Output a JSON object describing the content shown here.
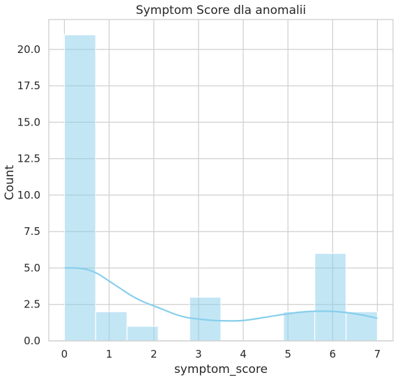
{
  "chart_data": {
    "type": "bar",
    "subtype": "histogram",
    "title": "Symptom Score dla anomalii",
    "xlabel": "symptom_score",
    "ylabel": "Count",
    "xlim": [
      -0.35,
      7.35
    ],
    "ylim": [
      0,
      22.05
    ],
    "xticks": [
      0,
      1,
      2,
      3,
      4,
      5,
      6,
      7
    ],
    "xtick_labels": [
      "0",
      "1",
      "2",
      "3",
      "4",
      "5",
      "6",
      "7"
    ],
    "yticks": [
      0,
      2.5,
      5,
      7.5,
      10,
      12.5,
      15,
      17.5,
      20
    ],
    "ytick_labels": [
      "0.0",
      "2.5",
      "5.0",
      "7.5",
      "10.0",
      "12.5",
      "15.0",
      "17.5",
      "20.0"
    ],
    "grid": true,
    "color": "#87ceeb",
    "bins": [
      {
        "x0": 0.0,
        "x1": 0.7,
        "count": 21
      },
      {
        "x0": 0.7,
        "x1": 1.4,
        "count": 2
      },
      {
        "x0": 1.4,
        "x1": 2.1,
        "count": 1
      },
      {
        "x0": 2.1,
        "x1": 2.8,
        "count": 0
      },
      {
        "x0": 2.8,
        "x1": 3.5,
        "count": 3
      },
      {
        "x0": 3.5,
        "x1": 4.2,
        "count": 0
      },
      {
        "x0": 4.2,
        "x1": 4.9,
        "count": 0
      },
      {
        "x0": 4.9,
        "x1": 5.6,
        "count": 2
      },
      {
        "x0": 5.6,
        "x1": 6.3,
        "count": 6
      },
      {
        "x0": 6.3,
        "x1": 7.0,
        "count": 2
      }
    ],
    "kde": {
      "x": [
        0,
        0.25,
        0.5,
        0.75,
        1.0,
        1.25,
        1.5,
        1.75,
        2.0,
        2.25,
        2.5,
        2.75,
        3.0,
        3.25,
        3.5,
        3.75,
        4.0,
        4.25,
        4.5,
        4.75,
        5.0,
        5.25,
        5.5,
        5.75,
        6.0,
        6.25,
        6.5,
        6.75,
        7.0
      ],
      "y": [
        5.0,
        5.0,
        4.9,
        4.6,
        4.1,
        3.6,
        3.1,
        2.7,
        2.4,
        2.1,
        1.8,
        1.6,
        1.5,
        1.42,
        1.38,
        1.37,
        1.4,
        1.5,
        1.62,
        1.75,
        1.86,
        1.96,
        2.02,
        2.04,
        2.02,
        1.96,
        1.86,
        1.72,
        1.55
      ]
    }
  }
}
